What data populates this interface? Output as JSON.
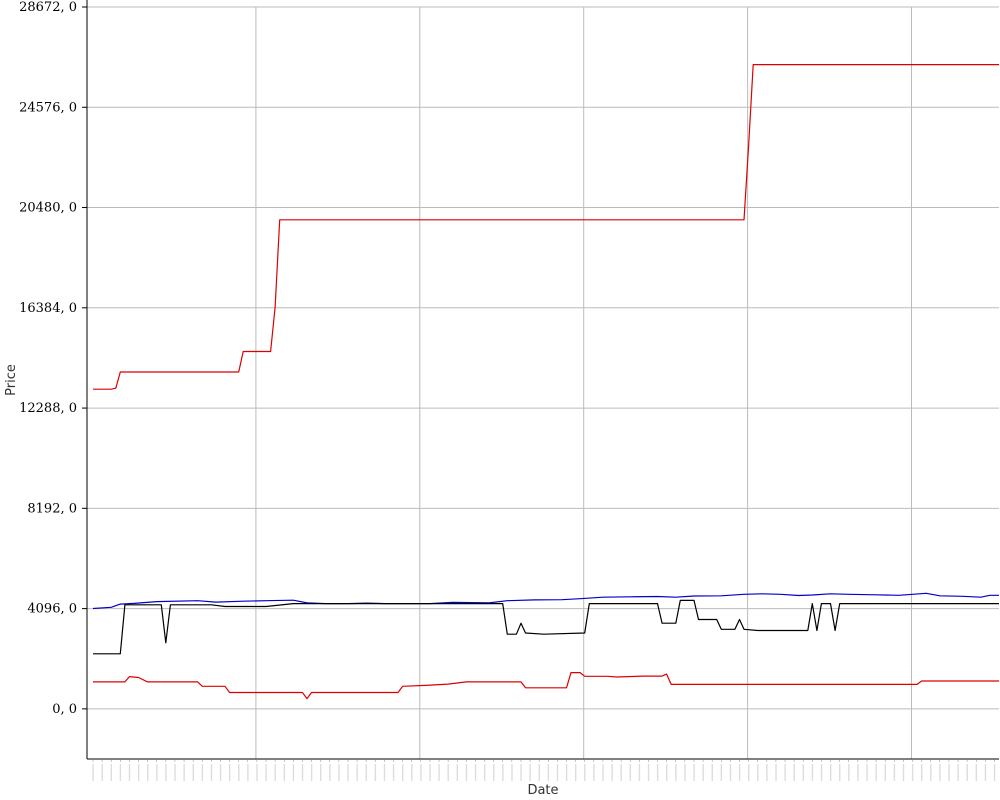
{
  "chart_data": {
    "type": "line",
    "title": "",
    "xlabel": "Date",
    "ylabel": "Price",
    "ylim": [
      -2048,
      28672
    ],
    "yticks": [
      0,
      4096,
      8192,
      12288,
      16384,
      20480,
      24576,
      28672
    ],
    "ytick_labels": [
      "0, 0",
      "4096, 0",
      "8192, 0",
      "12288, 0",
      "16384, 0",
      "20480, 0",
      "24576, 0",
      "28672, 0"
    ],
    "x_count": 200,
    "grid": true,
    "legend": "none",
    "series": [
      {
        "color": "#dd0000",
        "points": [
          [
            0,
            13060
          ],
          [
            4,
            13060
          ],
          [
            5,
            13100
          ],
          [
            6,
            13760
          ],
          [
            32,
            13760
          ],
          [
            33,
            14600
          ],
          [
            39,
            14600
          ],
          [
            40,
            16400
          ],
          [
            41,
            19980
          ],
          [
            143,
            19980
          ],
          [
            144,
            23000
          ],
          [
            145,
            26320
          ],
          [
            199,
            26320
          ]
        ]
      },
      {
        "color": "#0000cc",
        "points": [
          [
            0,
            4100
          ],
          [
            4,
            4150
          ],
          [
            6,
            4280
          ],
          [
            9,
            4310
          ],
          [
            14,
            4380
          ],
          [
            23,
            4420
          ],
          [
            27,
            4360
          ],
          [
            33,
            4400
          ],
          [
            38,
            4420
          ],
          [
            44,
            4440
          ],
          [
            47,
            4330
          ],
          [
            51,
            4300
          ],
          [
            56,
            4300
          ],
          [
            60,
            4320
          ],
          [
            64,
            4300
          ],
          [
            74,
            4300
          ],
          [
            79,
            4350
          ],
          [
            87,
            4330
          ],
          [
            91,
            4420
          ],
          [
            97,
            4450
          ],
          [
            103,
            4460
          ],
          [
            107,
            4500
          ],
          [
            112,
            4560
          ],
          [
            118,
            4580
          ],
          [
            124,
            4590
          ],
          [
            128,
            4560
          ],
          [
            132,
            4610
          ],
          [
            138,
            4620
          ],
          [
            143,
            4680
          ],
          [
            147,
            4700
          ],
          [
            151,
            4680
          ],
          [
            155,
            4630
          ],
          [
            158,
            4650
          ],
          [
            162,
            4700
          ],
          [
            166,
            4680
          ],
          [
            172,
            4660
          ],
          [
            177,
            4640
          ],
          [
            180,
            4680
          ],
          [
            183,
            4720
          ],
          [
            186,
            4620
          ],
          [
            191,
            4600
          ],
          [
            195,
            4560
          ],
          [
            197,
            4640
          ],
          [
            199,
            4640
          ]
        ]
      },
      {
        "color": "#000000",
        "points": [
          [
            0,
            2250
          ],
          [
            6,
            2250
          ],
          [
            7,
            4250
          ],
          [
            15,
            4250
          ],
          [
            16,
            2700
          ],
          [
            17,
            4250
          ],
          [
            26,
            4250
          ],
          [
            29,
            4180
          ],
          [
            38,
            4180
          ],
          [
            44,
            4300
          ],
          [
            90,
            4300
          ],
          [
            91,
            3050
          ],
          [
            93,
            3050
          ],
          [
            94,
            3500
          ],
          [
            95,
            3100
          ],
          [
            99,
            3050
          ],
          [
            108,
            3100
          ],
          [
            109,
            4300
          ],
          [
            124,
            4300
          ],
          [
            125,
            3500
          ],
          [
            128,
            3500
          ],
          [
            129,
            4430
          ],
          [
            132,
            4430
          ],
          [
            133,
            3650
          ],
          [
            137,
            3650
          ],
          [
            138,
            3250
          ],
          [
            141,
            3250
          ],
          [
            142,
            3650
          ],
          [
            143,
            3250
          ],
          [
            146,
            3200
          ],
          [
            157,
            3200
          ],
          [
            158,
            4300
          ],
          [
            159,
            3200
          ],
          [
            160,
            4300
          ],
          [
            162,
            4300
          ],
          [
            163,
            3200
          ],
          [
            164,
            4300
          ],
          [
            199,
            4300
          ]
        ]
      },
      {
        "color": "#dd0000",
        "points": [
          [
            0,
            1100
          ],
          [
            7,
            1100
          ],
          [
            8,
            1320
          ],
          [
            10,
            1280
          ],
          [
            12,
            1100
          ],
          [
            23,
            1100
          ],
          [
            24,
            920
          ],
          [
            29,
            920
          ],
          [
            30,
            670
          ],
          [
            46,
            670
          ],
          [
            47,
            420
          ],
          [
            48,
            670
          ],
          [
            67,
            670
          ],
          [
            68,
            920
          ],
          [
            73,
            960
          ],
          [
            78,
            1010
          ],
          [
            82,
            1100
          ],
          [
            94,
            1100
          ],
          [
            95,
            860
          ],
          [
            104,
            860
          ],
          [
            105,
            1480
          ],
          [
            107,
            1480
          ],
          [
            108,
            1330
          ],
          [
            113,
            1330
          ],
          [
            115,
            1300
          ],
          [
            121,
            1340
          ],
          [
            125,
            1340
          ],
          [
            126,
            1420
          ],
          [
            127,
            1000
          ],
          [
            181,
            1000
          ],
          [
            182,
            1140
          ],
          [
            199,
            1140
          ]
        ]
      }
    ]
  }
}
